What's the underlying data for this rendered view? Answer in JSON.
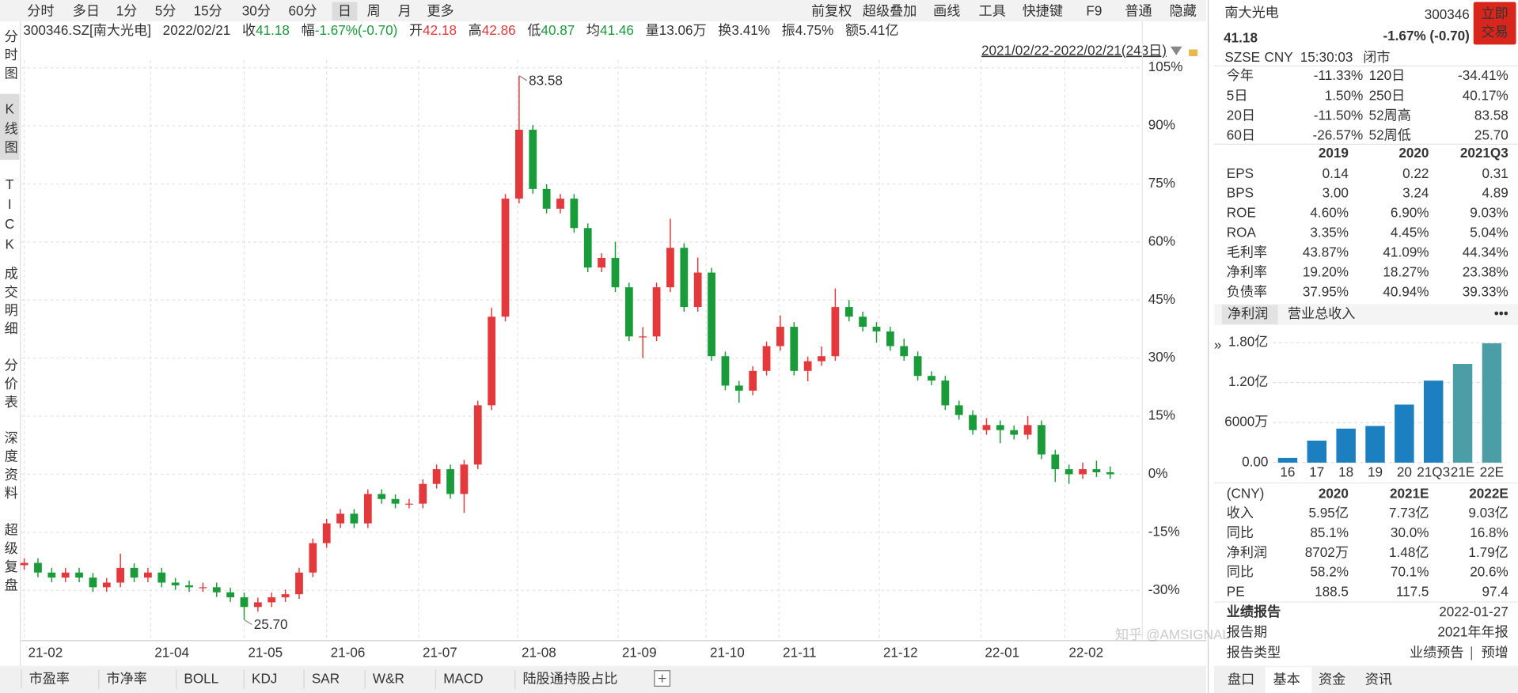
{
  "toolbar": {
    "periods": [
      "分时",
      "多日",
      "1分",
      "5分",
      "15分",
      "30分",
      "60分",
      "日",
      "周",
      "月",
      "更多"
    ],
    "active": 7,
    "tools": [
      "前复权",
      "超级叠加",
      "画线",
      "工具",
      "快捷键",
      "F9",
      "普通",
      "隐藏"
    ]
  },
  "quote_line": {
    "symbol": "300346.SZ[南大光电]",
    "date": "2022/02/21",
    "fields": [
      {
        "label": "收",
        "value": "41.18",
        "color": "#1a9b3a"
      },
      {
        "label": "幅",
        "value": "-1.67%(-0.70)",
        "color": "#1a9b3a"
      },
      {
        "label": "开",
        "value": "42.18",
        "color": "#e4393c"
      },
      {
        "label": "高",
        "value": "42.86",
        "color": "#e4393c"
      },
      {
        "label": "低",
        "value": "40.87",
        "color": "#1a9b3a"
      },
      {
        "label": "均",
        "value": "41.46",
        "color": "#1a9b3a"
      },
      {
        "label": "量",
        "value": "13.06万",
        "color": "#333333"
      },
      {
        "label": "换",
        "value": "3.41%",
        "color": "#333333"
      },
      {
        "label": "振",
        "value": "4.75%",
        "color": "#333333"
      },
      {
        "label": "额",
        "value": "5.41亿",
        "color": "#333333"
      }
    ]
  },
  "range": "2021/02/22-2022/02/21(243日)",
  "side_tabs": [
    "分时图",
    "K线图",
    "TICK",
    "成交明细",
    "分价表",
    "深度资料",
    "超级复盘"
  ],
  "side_active": 1,
  "chart_data": [
    {
      "type": "candlestick",
      "up_color": "#e4393c",
      "down_color": "#1a9b3a",
      "ylim": [
        -43,
        107
      ],
      "yticks": [
        {
          "value": 105,
          "label": "105%"
        },
        {
          "value": 90,
          "label": "90%"
        },
        {
          "value": 75,
          "label": "75%"
        },
        {
          "value": 60,
          "label": "60%"
        },
        {
          "value": 45,
          "label": "45%"
        },
        {
          "value": 30,
          "label": "30%"
        },
        {
          "value": 15,
          "label": "15%"
        },
        {
          "value": 0,
          "label": "0%"
        },
        {
          "value": -15,
          "label": "-15%"
        },
        {
          "value": -30,
          "label": "-30%"
        }
      ],
      "xticks": [
        {
          "value": 0,
          "label": "21-02"
        },
        {
          "value": 9.2,
          "label": "21-04"
        },
        {
          "value": 16,
          "label": "21-05"
        },
        {
          "value": 22,
          "label": "21-06"
        },
        {
          "value": 28.7,
          "label": "21-07"
        },
        {
          "value": 35.9,
          "label": "21-08"
        },
        {
          "value": 43.2,
          "label": "21-09"
        },
        {
          "value": 49.6,
          "label": "21-10"
        },
        {
          "value": 54.9,
          "label": "21-11"
        },
        {
          "value": 62.2,
          "label": "21-12"
        },
        {
          "value": 69.6,
          "label": "22-01"
        },
        {
          "value": 75.7,
          "label": "22-02"
        }
      ],
      "grid": true,
      "ohlc": [
        [
          -23.5,
          -21.7,
          -24.7,
          -22.9
        ],
        [
          -22.9,
          -21.7,
          -26.6,
          -25.4
        ],
        [
          -25.4,
          -24.2,
          -27.9,
          -26.7
        ],
        [
          -26.7,
          -24.2,
          -27.9,
          -25.4
        ],
        [
          -25.4,
          -24.2,
          -27.9,
          -26.7
        ],
        [
          -26.7,
          -25.5,
          -30.4,
          -29.2
        ],
        [
          -29.2,
          -26.8,
          -30.4,
          -28.0
        ],
        [
          -28.0,
          -20.5,
          -29.2,
          -24.2
        ],
        [
          -24.2,
          -23.0,
          -27.9,
          -26.7
        ],
        [
          -26.7,
          -24.2,
          -27.9,
          -25.4
        ],
        [
          -25.4,
          -24.2,
          -29.2,
          -28.0
        ],
        [
          -28.0,
          -26.8,
          -29.9,
          -28.7
        ],
        [
          -28.7,
          -27.5,
          -30.4,
          -29.2
        ],
        [
          -29.2,
          -28.0,
          -30.4,
          -29.2
        ],
        [
          -29.2,
          -28.0,
          -31.7,
          -30.5
        ],
        [
          -30.5,
          -29.3,
          -33.0,
          -31.8
        ],
        [
          -31.8,
          -30.6,
          -37.59,
          -34.3
        ],
        [
          -34.3,
          -31.9,
          -35.5,
          -33.1
        ],
        [
          -33.1,
          -30.6,
          -34.3,
          -31.8
        ],
        [
          -31.8,
          -29.8,
          -33.0,
          -31.0
        ],
        [
          -31.0,
          -24.2,
          -32.2,
          -25.4
        ],
        [
          -25.4,
          -16.6,
          -26.6,
          -17.8
        ],
        [
          -17.8,
          -11.5,
          -19.0,
          -12.7
        ],
        [
          -12.7,
          -9.0,
          -13.9,
          -10.2
        ],
        [
          -10.2,
          -9.0,
          -13.9,
          -12.7
        ],
        [
          -12.7,
          -3.9,
          -13.9,
          -5.1
        ],
        [
          -5.1,
          -3.9,
          -7.6,
          -6.4
        ],
        [
          -6.4,
          -5.2,
          -8.8,
          -7.6
        ],
        [
          -7.6,
          -6.4,
          -8.8,
          -7.6
        ],
        [
          -7.6,
          -1.3,
          -8.8,
          -2.5
        ],
        [
          -2.5,
          2.5,
          -3.7,
          1.3
        ],
        [
          1.3,
          2.5,
          -6.3,
          -5.1
        ],
        [
          -5.1,
          3.7,
          -10.0,
          2.5
        ],
        [
          2.5,
          19.0,
          1.3,
          17.8
        ],
        [
          17.8,
          43.0,
          16.6,
          40.7
        ],
        [
          40.7,
          72.4,
          39.5,
          71.2
        ],
        [
          71.2,
          102.96,
          70.0,
          89.0
        ],
        [
          89.0,
          90.2,
          72.5,
          73.7
        ],
        [
          73.7,
          74.9,
          67.4,
          68.6
        ],
        [
          68.6,
          72.4,
          67.4,
          71.2
        ],
        [
          71.2,
          72.4,
          62.4,
          63.6
        ],
        [
          63.6,
          64.8,
          52.2,
          53.4
        ],
        [
          53.4,
          57.1,
          52.2,
          55.9
        ],
        [
          55.9,
          60.0,
          47.1,
          48.3
        ],
        [
          48.3,
          49.5,
          34.4,
          35.6
        ],
        [
          35.6,
          38.0,
          30.0,
          35.6
        ],
        [
          35.6,
          49.5,
          34.4,
          48.3
        ],
        [
          48.3,
          66.0,
          47.1,
          58.5
        ],
        [
          58.5,
          59.7,
          42.0,
          43.2
        ],
        [
          43.2,
          56.0,
          42.0,
          52.1
        ],
        [
          52.1,
          53.3,
          29.3,
          30.5
        ],
        [
          30.5,
          31.7,
          21.7,
          22.9
        ],
        [
          22.9,
          24.1,
          18.5,
          21.6
        ],
        [
          21.6,
          27.9,
          20.4,
          26.7
        ],
        [
          26.7,
          34.3,
          25.5,
          33.1
        ],
        [
          33.1,
          41.0,
          31.9,
          38.1
        ],
        [
          38.1,
          39.3,
          25.5,
          26.7
        ],
        [
          26.7,
          30.4,
          24.0,
          29.2
        ],
        [
          29.2,
          33.0,
          28.0,
          30.5
        ],
        [
          30.5,
          48.0,
          29.3,
          43.2
        ],
        [
          43.2,
          45.0,
          39.5,
          40.7
        ],
        [
          40.7,
          42.0,
          36.9,
          38.1
        ],
        [
          38.1,
          39.3,
          34.0,
          36.9
        ],
        [
          36.9,
          38.1,
          31.9,
          33.1
        ],
        [
          33.1,
          35.0,
          29.3,
          30.5
        ],
        [
          30.5,
          31.7,
          24.2,
          25.4
        ],
        [
          25.4,
          26.6,
          23.0,
          24.2
        ],
        [
          24.2,
          25.4,
          16.6,
          17.8
        ],
        [
          17.8,
          19.0,
          14.1,
          15.3
        ],
        [
          15.3,
          16.5,
          10.2,
          11.4
        ],
        [
          11.4,
          14.5,
          10.2,
          12.7
        ],
        [
          12.7,
          13.9,
          8.0,
          11.4
        ],
        [
          11.4,
          12.6,
          9.0,
          10.2
        ],
        [
          10.2,
          15.0,
          9.0,
          12.7
        ],
        [
          12.7,
          13.9,
          3.9,
          5.1
        ],
        [
          5.1,
          6.3,
          -2.0,
          1.3
        ],
        [
          1.3,
          2.5,
          -2.5,
          0
        ],
        [
          0,
          3.0,
          -1.2,
          1.3
        ],
        [
          1.3,
          3.5,
          -0.7,
          0.5
        ],
        [
          0.5,
          2.0,
          -1.2,
          0
        ]
      ],
      "annotations": [
        {
          "text": "83.58",
          "candle": 36,
          "point": 1,
          "color": "#b22222"
        },
        {
          "text": "25.70",
          "candle": 16,
          "point": 2,
          "color": "#1a7a2a"
        }
      ]
    },
    {
      "type": "bar",
      "categories": [
        "16",
        "17",
        "18",
        "19",
        "20",
        "21Q3",
        "21E",
        "22E"
      ],
      "values": [
        0.07,
        0.33,
        0.51,
        0.55,
        0.87,
        1.23,
        1.48,
        1.79
      ],
      "colors": [
        "#1b7fc0",
        "#1b7fc0",
        "#1b7fc0",
        "#1b7fc0",
        "#1b7fc0",
        "#1b7fc0",
        "#4b9ea6",
        "#4b9ea6"
      ],
      "ylim": [
        0,
        1.93
      ],
      "yticks": [
        {
          "value": 0,
          "label": "0.00"
        },
        {
          "value": 0.6,
          "label": "6000万"
        },
        {
          "value": 1.2,
          "label": "1.20亿"
        },
        {
          "value": 1.8,
          "label": "1.80亿"
        }
      ],
      "grid": true
    }
  ],
  "indicator_tabs": [
    "市盈率",
    "市净率",
    "BOLL",
    "KDJ",
    "SAR",
    "W&R",
    "MACD",
    "陆股通持股占比"
  ],
  "panel": {
    "name": "南大光电",
    "code": "300346",
    "price": "41.18",
    "change": "-1.67% (-0.70)",
    "trade_button": [
      "立即",
      "交易"
    ],
    "status": [
      "SZSE",
      "CNY",
      "15:30:03",
      "闭市"
    ],
    "stats": [
      {
        "l1": "今年",
        "v1": "-11.33%",
        "c1": "#1a9b3a",
        "l2": "120日",
        "v2": "-34.41%",
        "c2": "#1a9b3a"
      },
      {
        "l1": "5日",
        "v1": "1.50%",
        "c1": "#e4393c",
        "l2": "250日",
        "v2": "40.17%",
        "c2": "#e4393c"
      },
      {
        "l1": "20日",
        "v1": "-11.50%",
        "c1": "#1a9b3a",
        "l2": "52周高",
        "v2": "83.58",
        "c2": "#333333"
      },
      {
        "l1": "60日",
        "v1": "-26.57%",
        "c1": "#1a9b3a",
        "l2": "52周低",
        "v2": "25.70",
        "c2": "#333333"
      }
    ],
    "fin": {
      "columns": [
        "2019",
        "2020",
        "2021Q3"
      ],
      "rows": [
        [
          "EPS",
          "0.14",
          "0.22",
          "0.31"
        ],
        [
          "BPS",
          "3.00",
          "3.24",
          "4.89"
        ],
        [
          "ROE",
          "4.60%",
          "6.90%",
          "9.03%"
        ],
        [
          "ROA",
          "3.35%",
          "4.45%",
          "5.04%"
        ],
        [
          "毛利率",
          "43.87%",
          "41.09%",
          "44.34%"
        ],
        [
          "净利率",
          "19.20%",
          "18.27%",
          "23.38%"
        ],
        [
          "负债率",
          "37.95%",
          "40.94%",
          "39.33%"
        ]
      ]
    },
    "chart_tabs": [
      "净利润",
      "营业总收入"
    ],
    "more": "•••",
    "forecast": {
      "columns": [
        "(CNY)",
        "2020",
        "2021E",
        "2022E"
      ],
      "rows": [
        {
          "cells": [
            "收入",
            "5.95亿",
            "7.73亿",
            "9.03亿"
          ],
          "color": "#333333"
        },
        {
          "cells": [
            "同比",
            "85.1%",
            "30.0%",
            "16.8%"
          ],
          "color": "#c0282b"
        },
        {
          "cells": [
            "净利润",
            "8702万",
            "1.48亿",
            "1.79亿"
          ],
          "color": "#333333"
        },
        {
          "cells": [
            "同比",
            "58.2%",
            "70.1%",
            "20.6%"
          ],
          "color": "#c0282b"
        },
        {
          "cells": [
            "PE",
            "188.5",
            "117.5",
            "97.4"
          ],
          "color": "#333333"
        }
      ]
    },
    "report": [
      [
        "业绩报告",
        "2022-01-27"
      ],
      [
        "报告期",
        "2021年年报"
      ],
      [
        "报告类型",
        "业绩预告",
        "预增"
      ]
    ],
    "bottom_tabs": [
      "盘口",
      "基本",
      "资金",
      "资讯"
    ],
    "bottom_active": 1
  },
  "watermark": "知乎 @AMSIGNAL"
}
